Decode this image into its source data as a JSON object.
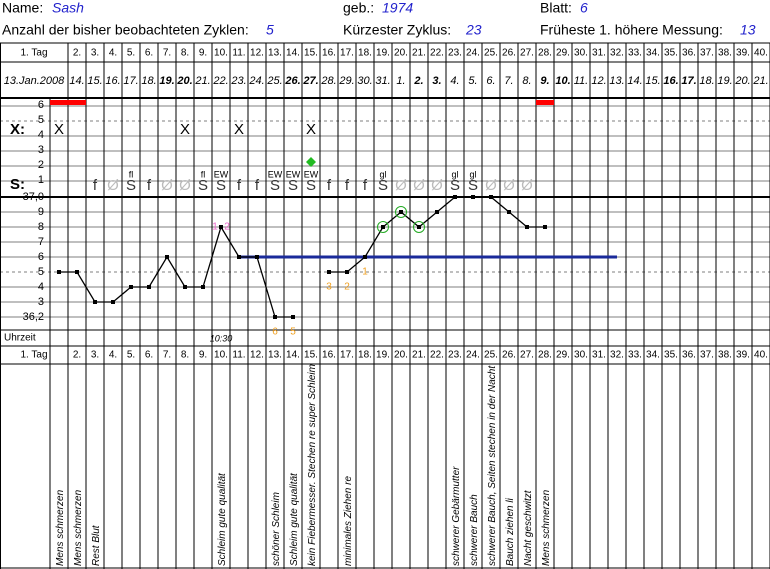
{
  "header": {
    "name_label": "Name:",
    "name": "Sash",
    "born_label": "geb.:",
    "born": 1974,
    "sheet_label": "Blatt:",
    "sheet": 6,
    "cycles_label": "Anzahl der bisher beobachteten Zyklen:",
    "cycles": 5,
    "shortest_label": "Kürzester Zyklus:",
    "shortest": 23,
    "earliest_label": "Früheste 1. höhere Messung:",
    "earliest": 13
  },
  "days": [
    "1. Tag",
    "2.",
    "3.",
    "4.",
    "5.",
    "6.",
    "7.",
    "8.",
    "9.",
    "10.",
    "11.",
    "12.",
    "13.",
    "14.",
    "15.",
    "16.",
    "17.",
    "18.",
    "19.",
    "20.",
    "21.",
    "22.",
    "23.",
    "24.",
    "25.",
    "26.",
    "27.",
    "28.",
    "29.",
    "30.",
    "31.",
    "32.",
    "33.",
    "34.",
    "35.",
    "36.",
    "37.",
    "38.",
    "39.",
    "40."
  ],
  "dates": [
    "13.Jan.2008",
    "14.",
    "15.",
    "16.",
    "17.",
    "18.",
    "19.",
    "20.",
    "21.",
    "22.",
    "23.",
    "24.",
    "25.",
    "26.",
    "27.",
    "28.",
    "29.",
    "30.",
    "31.",
    "1.",
    "2.",
    "3.",
    "4.",
    "5.",
    "6.",
    "7.",
    "8.",
    "9.",
    "10.",
    "11.",
    "12.",
    "13.",
    "14.",
    "15.",
    "16.",
    "17.",
    "18.",
    "19.",
    "20.",
    "21."
  ],
  "bold_date_days": [
    7,
    8,
    14,
    15,
    21,
    22,
    28,
    29,
    35,
    36
  ],
  "labels": {
    "x_row": "X:",
    "s_row": "S:",
    "time_row": "Uhrzeit"
  },
  "level_ticks": [
    6,
    5,
    4,
    3,
    2,
    1
  ],
  "temp_ticks": [
    {
      "value": 37.0,
      "label": "37,0"
    },
    {
      "value": 36.9,
      "label": "9"
    },
    {
      "value": 36.8,
      "label": "8"
    },
    {
      "value": 36.7,
      "label": "7"
    },
    {
      "value": 36.6,
      "label": "6"
    },
    {
      "value": 36.5,
      "label": "5"
    },
    {
      "value": 36.4,
      "label": "4"
    },
    {
      "value": 36.3,
      "label": "3"
    },
    {
      "value": 36.2,
      "label": "36,2"
    }
  ],
  "bleeding": {
    "level": 6,
    "days": [
      1,
      2,
      28
    ],
    "color": "#ff0000"
  },
  "x_marks": {
    "symbol": "X",
    "days": [
      1,
      8,
      11,
      15
    ]
  },
  "diamond": {
    "day": 15,
    "level": 2,
    "color": "#22bb22"
  },
  "mucus": [
    {
      "day": 3,
      "symbol": "f"
    },
    {
      "day": 4,
      "symbol": "Ø"
    },
    {
      "day": 5,
      "symbol": "S"
    },
    {
      "day": 6,
      "symbol": "f"
    },
    {
      "day": 7,
      "symbol": "Ø"
    },
    {
      "day": 8,
      "symbol": "Ø"
    },
    {
      "day": 9,
      "symbol": "S"
    },
    {
      "day": 10,
      "symbol": "S"
    },
    {
      "day": 11,
      "symbol": "f"
    },
    {
      "day": 12,
      "symbol": "f"
    },
    {
      "day": 13,
      "symbol": "S"
    },
    {
      "day": 14,
      "symbol": "S"
    },
    {
      "day": 15,
      "symbol": "S"
    },
    {
      "day": 16,
      "symbol": "f"
    },
    {
      "day": 17,
      "symbol": "f"
    },
    {
      "day": 18,
      "symbol": "f"
    },
    {
      "day": 19,
      "symbol": "S"
    },
    {
      "day": 20,
      "symbol": "Ø"
    },
    {
      "day": 21,
      "symbol": "Ø"
    },
    {
      "day": 22,
      "symbol": "Ø"
    },
    {
      "day": 23,
      "symbol": "S"
    },
    {
      "day": 24,
      "symbol": "S"
    },
    {
      "day": 25,
      "symbol": "Ø"
    },
    {
      "day": 26,
      "symbol": "Ø"
    },
    {
      "day": 27,
      "symbol": "Ø"
    }
  ],
  "mucus_notes": [
    {
      "day": 5,
      "text": "fl"
    },
    {
      "day": 9,
      "text": "fl"
    },
    {
      "day": 10,
      "text": "EW"
    },
    {
      "day": 13,
      "text": "EW"
    },
    {
      "day": 14,
      "text": "EW"
    },
    {
      "day": 15,
      "text": "EW"
    },
    {
      "day": 19,
      "text": "gl"
    },
    {
      "day": 23,
      "text": "gl"
    },
    {
      "day": 24,
      "text": "gl"
    }
  ],
  "temperatures": [
    36.5,
    36.5,
    36.3,
    36.3,
    36.4,
    36.4,
    36.6,
    36.4,
    36.4,
    36.8,
    36.6,
    36.6,
    36.2,
    36.2,
    null,
    36.5,
    36.5,
    36.6,
    36.8,
    36.9,
    36.8,
    36.9,
    37.0,
    37.0,
    37.0,
    36.9,
    36.8,
    36.8
  ],
  "circled_days": [
    19,
    20,
    21
  ],
  "coverline": {
    "temp": 36.6,
    "from_day": 11,
    "to_day": 32,
    "color": "#1a2a9a"
  },
  "count_labels": [
    {
      "day": 13,
      "temp": 36.1,
      "text": "6"
    },
    {
      "day": 14,
      "temp": 36.1,
      "text": "5"
    },
    {
      "day": 16,
      "temp": 36.4,
      "text": "3"
    },
    {
      "day": 17,
      "temp": 36.4,
      "text": "2"
    },
    {
      "day": 18,
      "temp": 36.5,
      "text": "1"
    }
  ],
  "cervix_labels": [
    {
      "day": 10,
      "temp": 36.8,
      "text": "1"
    },
    {
      "day": 10,
      "temp": 36.8,
      "text": "2"
    }
  ],
  "time": {
    "day": 10,
    "text": "10:30"
  },
  "notes": [
    {
      "day": 1,
      "text": "Mens schmerzen"
    },
    {
      "day": 2,
      "text": "Mens schmerzen"
    },
    {
      "day": 3,
      "text": "Rest Blut"
    },
    {
      "day": 10,
      "text": "Schleim gute qualität"
    },
    {
      "day": 13,
      "text": "schöner Schleim"
    },
    {
      "day": 14,
      "text": "Schleim gute qualität"
    },
    {
      "day": 15,
      "text": "kein Fiebermesser. Stechen re super Schleim"
    },
    {
      "day": 17,
      "text": "minimales Ziehen re"
    },
    {
      "day": 23,
      "text": "schwerer Gebärmutter"
    },
    {
      "day": 24,
      "text": "schwerer Bauch"
    },
    {
      "day": 25,
      "text": "schwerer Bauch, Seiten stechen in der Nacht"
    },
    {
      "day": 26,
      "text": "Bauch ziehen li"
    },
    {
      "day": 27,
      "text": "Nacht geschwitzt"
    },
    {
      "day": 28,
      "text": "Mens schmerzen"
    }
  ]
}
